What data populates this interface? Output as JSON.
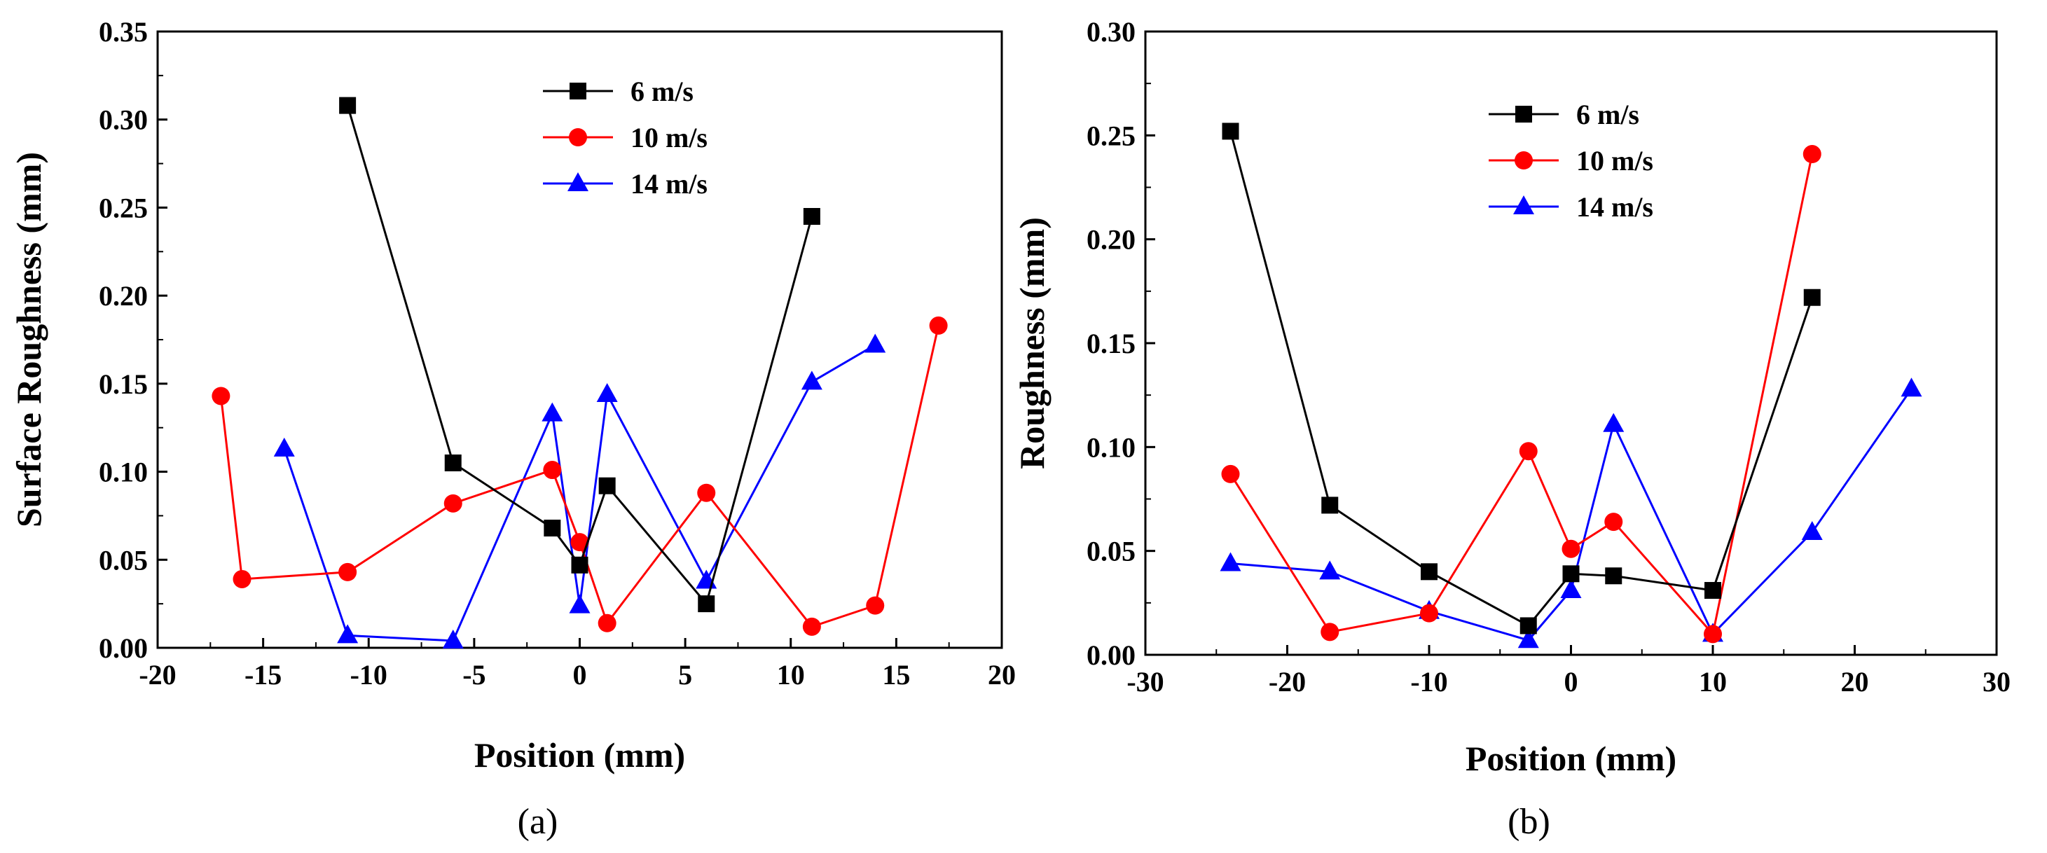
{
  "chart_data": [
    {
      "type": "line",
      "panel_label": "(a)",
      "xlabel": "Position (mm)",
      "ylabel": "Surface Roughness (mm)",
      "xlim": [
        -20,
        20
      ],
      "ylim": [
        0,
        0.35
      ],
      "xticks": [
        -20,
        -15,
        -10,
        -5,
        0,
        5,
        10,
        15,
        20
      ],
      "xtick_labels": [
        "-20",
        "-15",
        "-10",
        "-5",
        "0",
        "5",
        "10",
        "15",
        "20"
      ],
      "yticks": [
        0,
        0.05,
        0.1,
        0.15,
        0.2,
        0.25,
        0.3,
        0.35
      ],
      "ytick_labels": [
        "0.00",
        "0.05",
        "0.10",
        "0.15",
        "0.20",
        "0.25",
        "0.30",
        "0.35"
      ],
      "legend_position": "top-center",
      "series": [
        {
          "name": "6 m/s",
          "color": "#000000",
          "marker": "square",
          "x": [
            -11,
            -6,
            -1.3,
            0,
            1.3,
            6,
            11
          ],
          "y": [
            0.308,
            0.105,
            0.068,
            0.047,
            0.092,
            0.025,
            0.245
          ]
        },
        {
          "name": "10 m/s",
          "color": "#ff0000",
          "marker": "circle",
          "x": [
            -17,
            -16,
            -11,
            -6,
            -1.3,
            0,
            1.3,
            6,
            11,
            14,
            17
          ],
          "y": [
            0.143,
            0.039,
            0.043,
            0.082,
            0.101,
            0.06,
            0.014,
            0.088,
            0.012,
            0.024,
            0.183
          ]
        },
        {
          "name": "14 m/s",
          "color": "#0000ff",
          "marker": "triangle",
          "x": [
            -14,
            -11,
            -6,
            -1.3,
            0,
            1.3,
            6,
            11,
            14
          ],
          "y": [
            0.113,
            0.007,
            0.004,
            0.133,
            0.024,
            0.144,
            0.038,
            0.151,
            0.172
          ]
        }
      ]
    },
    {
      "type": "line",
      "panel_label": "(b)",
      "xlabel": "Position (mm)",
      "ylabel": "Roughness (mm)",
      "xlim": [
        -30,
        30
      ],
      "ylim": [
        0,
        0.3
      ],
      "xticks": [
        -30,
        -20,
        -10,
        0,
        10,
        20,
        30
      ],
      "xtick_labels": [
        "-30",
        "-20",
        "-10",
        "0",
        "10",
        "20",
        "30"
      ],
      "yticks": [
        0,
        0.05,
        0.1,
        0.15,
        0.2,
        0.25,
        0.3
      ],
      "ytick_labels": [
        "0.00",
        "0.05",
        "0.10",
        "0.15",
        "0.20",
        "0.25",
        "0.30"
      ],
      "legend_position": "top-center",
      "series": [
        {
          "name": "6 m/s",
          "color": "#000000",
          "marker": "square",
          "x": [
            -24,
            -17,
            -10,
            -3,
            0,
            3,
            10,
            17
          ],
          "y": [
            0.252,
            0.072,
            0.04,
            0.014,
            0.039,
            0.038,
            0.031,
            0.172
          ]
        },
        {
          "name": "10 m/s",
          "color": "#ff0000",
          "marker": "circle",
          "x": [
            -24,
            -17,
            -10,
            -3,
            0,
            3,
            10,
            17
          ],
          "y": [
            0.087,
            0.011,
            0.02,
            0.098,
            0.051,
            0.064,
            0.01,
            0.241
          ]
        },
        {
          "name": "14 m/s",
          "color": "#0000ff",
          "marker": "triangle",
          "x": [
            -24,
            -17,
            -10,
            -3,
            0,
            3,
            10,
            17,
            24
          ],
          "y": [
            0.044,
            0.04,
            0.021,
            0.007,
            0.031,
            0.111,
            0.01,
            0.059,
            0.128
          ]
        }
      ]
    }
  ]
}
